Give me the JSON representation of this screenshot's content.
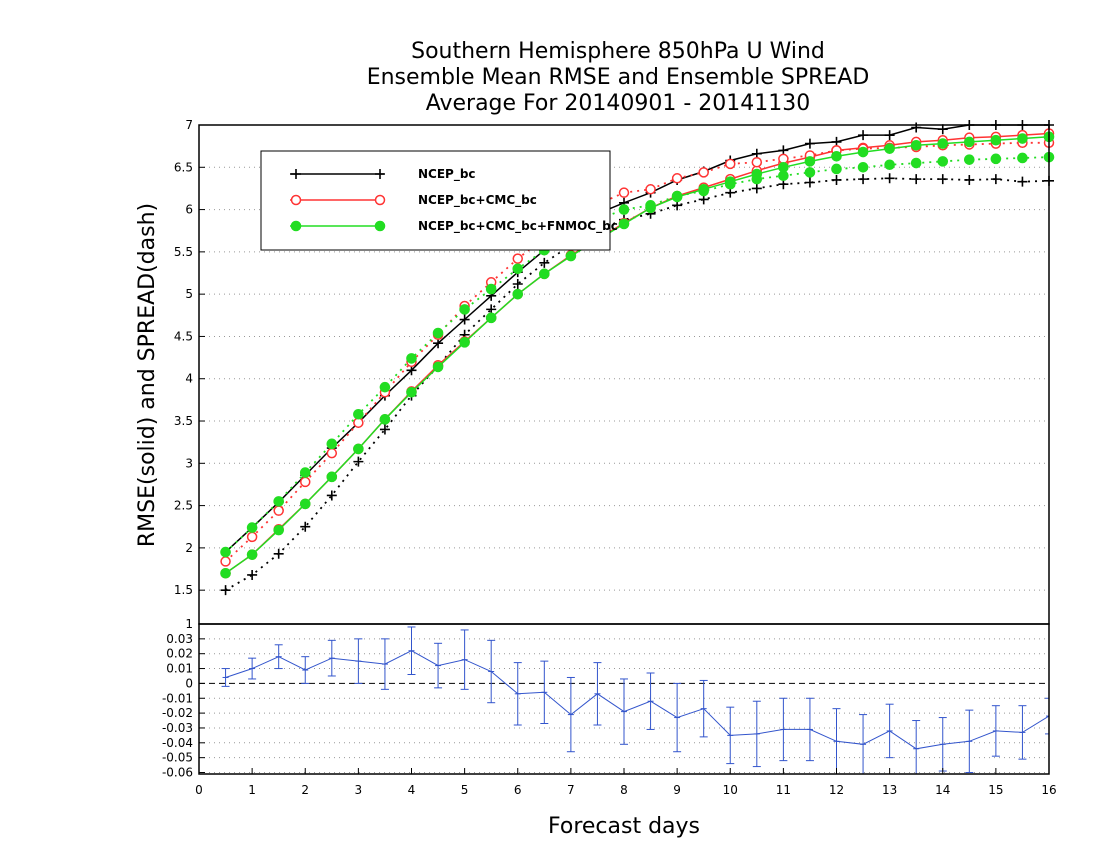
{
  "chart_data": [
    {
      "type": "line",
      "title": [
        "Southern Hemisphere 850hPa U Wind",
        "Ensemble Mean RMSE and Ensemble SPREAD",
        "Average For 20140901 - 20141130"
      ],
      "xlabel": "Forecast days",
      "ylabel": "RMSE(solid) and SPREAD(dash)",
      "xlim": [
        0,
        16
      ],
      "ylim": [
        1.1,
        7
      ],
      "xticks": [
        0,
        1,
        2,
        3,
        4,
        5,
        6,
        7,
        8,
        9,
        10,
        11,
        12,
        13,
        14,
        15,
        16
      ],
      "yticks": [
        1.5,
        2,
        2.5,
        3,
        3.5,
        4,
        4.5,
        5,
        5.5,
        6,
        6.5,
        7
      ],
      "grid": "horizontal dotted",
      "legend_position": "top-left",
      "x": [
        0.5,
        1,
        1.5,
        2,
        2.5,
        3,
        3.5,
        4,
        4.5,
        5,
        5.5,
        6,
        6.5,
        7,
        7.5,
        8,
        8.5,
        9,
        9.5,
        10,
        10.5,
        11,
        11.5,
        12,
        12.5,
        13,
        13.5,
        14,
        14.5,
        15,
        15.5,
        16
      ],
      "series": [
        {
          "name": "NCEP_bc",
          "color": "#000000",
          "marker": "plus",
          "rmse": [
            1.95,
            2.24,
            2.54,
            2.86,
            3.18,
            3.48,
            3.8,
            4.1,
            4.42,
            4.7,
            4.98,
            5.26,
            5.52,
            5.76,
            5.95,
            6.08,
            6.2,
            6.35,
            6.45,
            6.58,
            6.66,
            6.7,
            6.78,
            6.8,
            6.88,
            6.88,
            6.97,
            6.95,
            7.0,
            7.0,
            7.0,
            7.0
          ],
          "spread": [
            1.5,
            1.68,
            1.93,
            2.25,
            2.62,
            3.02,
            3.4,
            3.8,
            4.15,
            4.52,
            4.82,
            5.12,
            5.37,
            5.58,
            5.76,
            5.88,
            5.95,
            6.05,
            6.12,
            6.2,
            6.25,
            6.3,
            6.32,
            6.35,
            6.36,
            6.37,
            6.36,
            6.36,
            6.35,
            6.36,
            6.33,
            6.34
          ]
        },
        {
          "name": "NCEP_bc+CMC_bc",
          "color": "#ff3333",
          "marker": "open-circle",
          "rmse": [
            1.7,
            1.92,
            2.22,
            2.52,
            2.84,
            3.17,
            3.52,
            3.85,
            4.16,
            4.44,
            4.72,
            5.0,
            5.24,
            5.46,
            5.65,
            5.84,
            6.02,
            6.16,
            6.26,
            6.36,
            6.46,
            6.55,
            6.62,
            6.7,
            6.73,
            6.76,
            6.8,
            6.82,
            6.85,
            6.86,
            6.88,
            6.9
          ],
          "spread": [
            1.84,
            2.13,
            2.44,
            2.78,
            3.12,
            3.48,
            3.84,
            4.2,
            4.52,
            4.86,
            5.14,
            5.42,
            5.66,
            5.88,
            6.06,
            6.2,
            6.24,
            6.37,
            6.44,
            6.54,
            6.56,
            6.6,
            6.64,
            6.7,
            6.72,
            6.73,
            6.74,
            6.76,
            6.77,
            6.78,
            6.79,
            6.79
          ]
        },
        {
          "name": "NCEP_bc+CMC_bc+FNMOC_bc",
          "color": "#22dd22",
          "marker": "filled-circle",
          "rmse": [
            1.7,
            1.92,
            2.21,
            2.52,
            2.84,
            3.17,
            3.52,
            3.84,
            4.14,
            4.43,
            4.72,
            5.0,
            5.24,
            5.45,
            5.64,
            5.83,
            6.02,
            6.15,
            6.24,
            6.33,
            6.42,
            6.5,
            6.57,
            6.63,
            6.68,
            6.72,
            6.76,
            6.78,
            6.8,
            6.82,
            6.84,
            6.86
          ],
          "spread": [
            1.95,
            2.24,
            2.55,
            2.89,
            3.23,
            3.58,
            3.9,
            4.24,
            4.54,
            4.82,
            5.06,
            5.3,
            5.52,
            5.74,
            5.88,
            6.0,
            6.05,
            6.16,
            6.22,
            6.3,
            6.36,
            6.4,
            6.44,
            6.48,
            6.5,
            6.53,
            6.55,
            6.57,
            6.59,
            6.6,
            6.61,
            6.62
          ]
        }
      ]
    },
    {
      "type": "line",
      "title": "",
      "xlabel": "Forecast days",
      "ylabel": "",
      "xlim": [
        0,
        16
      ],
      "ylim": [
        -0.061,
        0.04
      ],
      "xticks": [
        0,
        1,
        2,
        3,
        4,
        5,
        6,
        7,
        8,
        9,
        10,
        11,
        12,
        13,
        14,
        15,
        16
      ],
      "yticks": [
        -0.06,
        -0.05,
        -0.04,
        -0.03,
        -0.02,
        -0.01,
        0,
        0.01,
        0.02,
        0.03
      ],
      "top_tick_label": "1",
      "zero_line": "dashed",
      "color": "#3355cc",
      "x": [
        0.5,
        1,
        1.5,
        2,
        2.5,
        3,
        3.5,
        4,
        4.5,
        5,
        5.5,
        6,
        6.5,
        7,
        7.5,
        8,
        8.5,
        9,
        9.5,
        10,
        10.5,
        11,
        11.5,
        12,
        12.5,
        13,
        13.5,
        14,
        14.5,
        15,
        15.5,
        16
      ],
      "values": [
        0.004,
        0.01,
        0.018,
        0.009,
        0.017,
        0.015,
        0.013,
        0.022,
        0.012,
        0.016,
        0.008,
        -0.007,
        -0.006,
        -0.021,
        -0.007,
        -0.019,
        -0.012,
        -0.023,
        -0.017,
        -0.035,
        -0.034,
        -0.031,
        -0.031,
        -0.039,
        -0.041,
        -0.032,
        -0.044,
        -0.041,
        -0.039,
        -0.032,
        -0.033,
        -0.022
      ],
      "error_half_width": [
        0.006,
        0.007,
        0.008,
        0.009,
        0.012,
        0.015,
        0.017,
        0.016,
        0.015,
        0.02,
        0.021,
        0.021,
        0.021,
        0.025,
        0.021,
        0.022,
        0.019,
        0.023,
        0.019,
        0.019,
        0.022,
        0.021,
        0.021,
        0.022,
        0.02,
        0.018,
        0.019,
        0.018,
        0.021,
        0.017,
        0.018,
        0.012
      ]
    }
  ]
}
